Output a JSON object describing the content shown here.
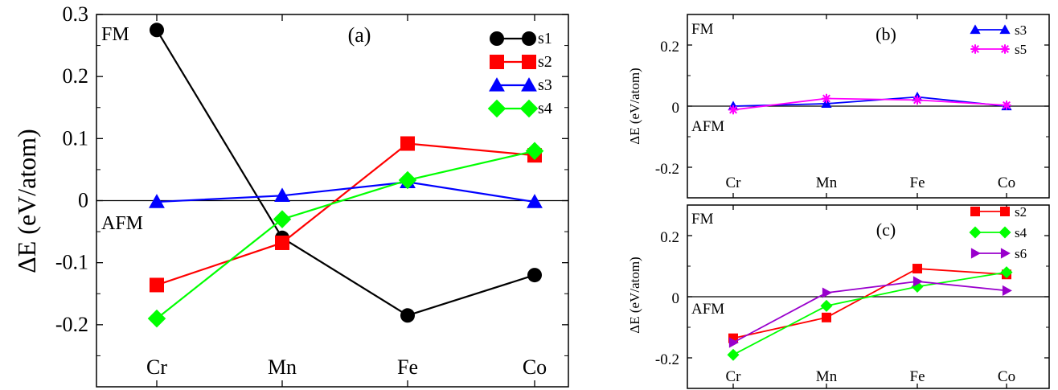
{
  "chart_data": [
    {
      "panel": "(a)",
      "type": "line",
      "categories": [
        "Cr",
        "Mn",
        "Fe",
        "Co"
      ],
      "ylabel": "ΔE (eV/atom)",
      "ylim": [
        -0.3,
        0.3
      ],
      "yticks": [
        -0.2,
        -0.1,
        0,
        0.1,
        0.2,
        0.3
      ],
      "ytick_labels": [
        "-0.2",
        "-0.1",
        "0",
        "0.1",
        "0.2",
        "0.3"
      ],
      "region_labels": {
        "upper": "FM",
        "lower": "AFM"
      },
      "legend": "top-right",
      "series": [
        {
          "name": "s1",
          "color": "#000000",
          "marker": "circle",
          "values": [
            0.275,
            -0.06,
            -0.185,
            -0.12
          ]
        },
        {
          "name": "s2",
          "color": "#ff0000",
          "marker": "square",
          "values": [
            -0.136,
            -0.068,
            0.092,
            0.073
          ]
        },
        {
          "name": "s3",
          "color": "#0000ff",
          "marker": "triangle-up",
          "values": [
            -0.002,
            0.008,
            0.03,
            -0.002
          ]
        },
        {
          "name": "s4",
          "color": "#00ff00",
          "marker": "diamond",
          "values": [
            -0.19,
            -0.03,
            0.033,
            0.08
          ]
        }
      ]
    },
    {
      "panel": "(b)",
      "type": "line",
      "categories": [
        "Cr",
        "Mn",
        "Fe",
        "Co"
      ],
      "ylabel": "ΔE (eV/atom)",
      "ylim": [
        -0.3,
        0.3
      ],
      "yticks": [
        -0.2,
        0,
        0.2
      ],
      "ytick_labels": [
        "-0.2",
        "0",
        "0.2"
      ],
      "region_labels": {
        "upper": "FM",
        "lower": "AFM"
      },
      "legend": "top-right",
      "series": [
        {
          "name": "s3",
          "color": "#0000ff",
          "marker": "triangle-up",
          "values": [
            0.0,
            0.008,
            0.03,
            0.0
          ]
        },
        {
          "name": "s5",
          "color": "#ff00ff",
          "marker": "asterisk",
          "values": [
            -0.012,
            0.025,
            0.02,
            0.003
          ]
        }
      ]
    },
    {
      "panel": "(c)",
      "type": "line",
      "categories": [
        "Cr",
        "Mn",
        "Fe",
        "Co"
      ],
      "ylabel": "ΔE (eV/atom)",
      "ylim": [
        -0.3,
        0.3
      ],
      "yticks": [
        -0.2,
        0,
        0.2
      ],
      "ytick_labels": [
        "-0.2",
        "0",
        "0.2"
      ],
      "region_labels": {
        "upper": "FM",
        "lower": "AFM"
      },
      "legend": "top-right",
      "series": [
        {
          "name": "s2",
          "color": "#ff0000",
          "marker": "square",
          "values": [
            -0.136,
            -0.068,
            0.092,
            0.073
          ]
        },
        {
          "name": "s4",
          "color": "#00ff00",
          "marker": "diamond",
          "values": [
            -0.19,
            -0.03,
            0.033,
            0.08
          ]
        },
        {
          "name": "s6",
          "color": "#9900cc",
          "marker": "triangle-right",
          "values": [
            -0.15,
            0.013,
            0.05,
            0.02
          ]
        }
      ]
    }
  ]
}
